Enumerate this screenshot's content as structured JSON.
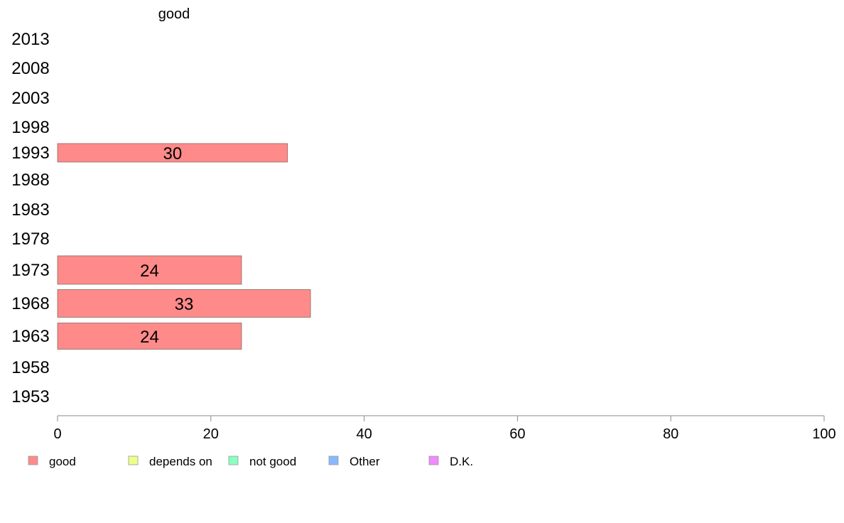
{
  "chart_data": {
    "type": "bar",
    "orientation": "horizontal",
    "column_title": "good",
    "categories": [
      "2013",
      "2008",
      "2003",
      "1998",
      "1993",
      "1988",
      "1983",
      "1978",
      "1973",
      "1968",
      "1963",
      "1958",
      "1953"
    ],
    "series": [
      {
        "name": "good",
        "color": "#ff8a8a",
        "values": [
          null,
          null,
          null,
          null,
          30,
          null,
          null,
          null,
          24,
          33,
          24,
          null,
          null
        ]
      },
      {
        "name": "depends on",
        "color": "#eeff8a",
        "values": [
          null,
          null,
          null,
          null,
          null,
          null,
          null,
          null,
          null,
          null,
          null,
          null,
          null
        ]
      },
      {
        "name": "not good",
        "color": "#8affbf",
        "values": [
          null,
          null,
          null,
          null,
          null,
          null,
          null,
          null,
          null,
          null,
          null,
          null,
          null
        ]
      },
      {
        "name": "Other",
        "color": "#8ab8ff",
        "values": [
          null,
          null,
          null,
          null,
          null,
          null,
          null,
          null,
          null,
          null,
          null,
          null,
          null
        ]
      },
      {
        "name": "D.K.",
        "color": "#f08aff",
        "values": [
          null,
          null,
          null,
          null,
          null,
          null,
          null,
          null,
          null,
          null,
          null,
          null,
          null
        ]
      }
    ],
    "data_labels": [
      "",
      "",
      "",
      "",
      "30",
      "",
      "",
      "",
      "24",
      "33",
      "24",
      "",
      ""
    ],
    "xlim": [
      0,
      100
    ],
    "xticks": [
      "0",
      "20",
      "40",
      "60",
      "80",
      "100"
    ],
    "grid": false,
    "legend": {
      "position": "bottom-left",
      "entries": [
        "good",
        "depends on",
        "not good",
        "Other",
        "D.K."
      ]
    }
  }
}
